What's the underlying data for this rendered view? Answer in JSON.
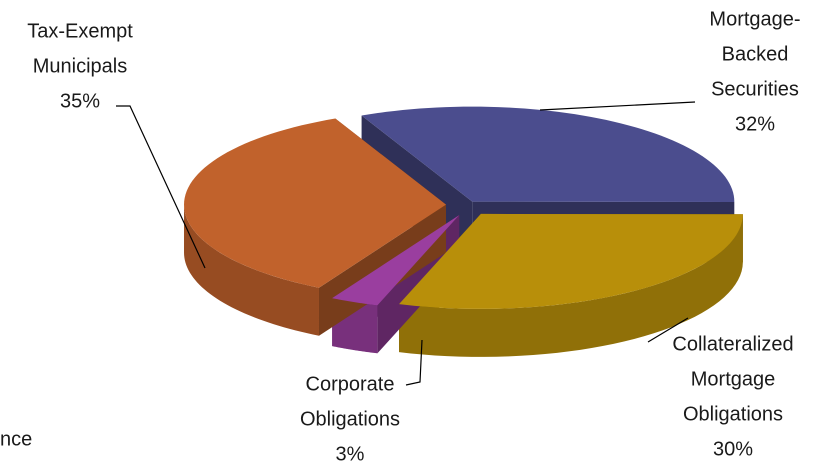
{
  "chart_data": {
    "type": "pie3d",
    "categories": [
      [
        "Mortgage-",
        "Backed",
        "Securities"
      ],
      [
        "Collateralized",
        "Mortgage",
        "Obligations"
      ],
      [
        "Corporate",
        "Obligations"
      ],
      [
        "Tax-Exempt",
        "Municipals"
      ]
    ],
    "values": [
      32,
      30,
      3,
      35
    ],
    "value_labels": [
      "32%",
      "30%",
      "3%",
      "35%"
    ],
    "colors": [
      "#4b4d8e",
      "#b88f0a",
      "#9a3e9f",
      "#c1622c"
    ],
    "clipped_text": "nce"
  }
}
